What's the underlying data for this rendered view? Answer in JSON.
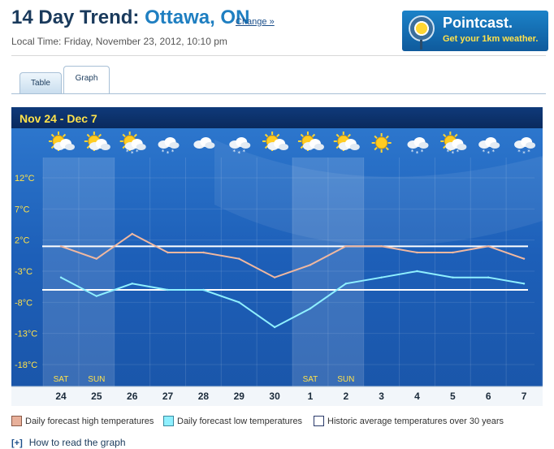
{
  "header": {
    "title_prefix": "14 Day Trend:",
    "location": "Ottawa, ON",
    "change_link": "Change »",
    "local_time": "Local Time: Friday, November 23, 2012, 10:10 pm"
  },
  "ad": {
    "name": "Pointcast.",
    "tagline": "Get your 1km weather."
  },
  "tabs": [
    {
      "label": "Table",
      "active": false
    },
    {
      "label": "Graph",
      "active": true
    }
  ],
  "chart_data": {
    "type": "line",
    "title": "Nov 24  -  Dec 7",
    "categories": [
      "24",
      "25",
      "26",
      "27",
      "28",
      "29",
      "30",
      "1",
      "2",
      "3",
      "4",
      "5",
      "6",
      "7"
    ],
    "weekday_labels": [
      "SAT",
      "SUN",
      "",
      "",
      "",
      "",
      "",
      "SAT",
      "SUN",
      "",
      "",
      "",
      "",
      ""
    ],
    "weekend_indices": [
      0,
      1,
      7,
      8
    ],
    "icons": [
      "cloudy-sun",
      "sun-cloud",
      "snow-sun",
      "snow-cloud",
      "cloud",
      "snow-cloud",
      "sun-cloud",
      "sun-cloud",
      "sun-cloud",
      "sun",
      "snow-cloud",
      "snow-sun",
      "snow-cloud",
      "snow-cloud"
    ],
    "yticks": [
      12,
      7,
      2,
      -3,
      -8,
      -13,
      -18
    ],
    "ytick_labels": [
      "12°C",
      "7°C",
      "2°C",
      "-3°C",
      "-8°C",
      "-13°C",
      "-18°C"
    ],
    "ylim": [
      -21,
      15
    ],
    "series": [
      {
        "values": [
          1,
          -1,
          3,
          0,
          0,
          -1,
          -4,
          -2,
          1,
          1,
          0,
          0,
          1,
          -1
        ],
        "color": "#f0b8a0"
      },
      {
        "values": [
          -4,
          -7,
          -5,
          -6,
          -6,
          -8,
          -12,
          -9,
          -5,
          -4,
          -3,
          -4,
          -4,
          -5
        ],
        "color": "#8ff0ff"
      }
    ],
    "averages": {
      "high": 1,
      "low": -6
    },
    "legend": [
      {
        "label": "Daily forecast high temperatures",
        "color": "#e8b09a"
      },
      {
        "label": "Daily forecast low temperatures",
        "color": "#8ff0ff"
      },
      {
        "label": "Historic average temperatures over 30 years",
        "color": "#ffffff"
      }
    ]
  },
  "footer": {
    "plus": "[+]",
    "howto": "How to read the graph"
  }
}
